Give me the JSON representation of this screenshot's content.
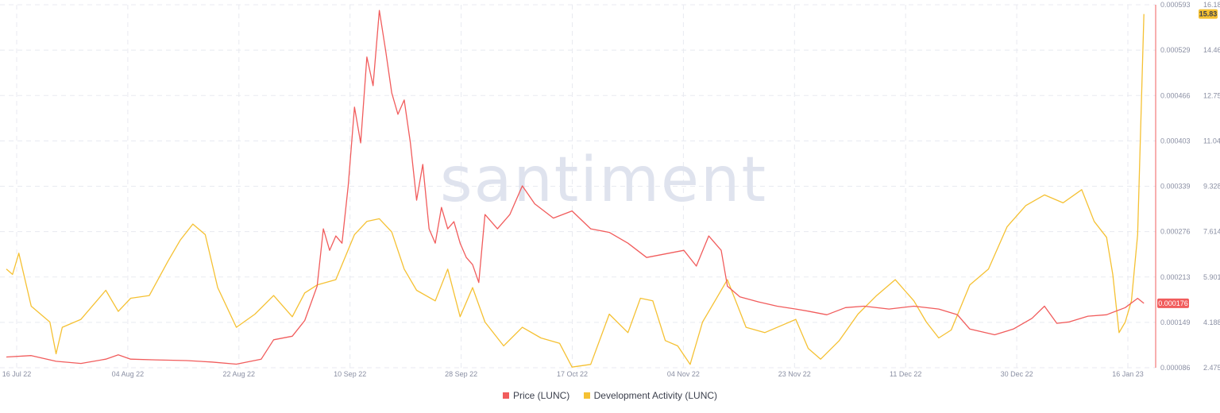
{
  "watermark": "santiment",
  "chart_data": {
    "type": "line",
    "x_tick_labels": [
      "16 Jul 22",
      "04 Aug 22",
      "22 Aug 22",
      "10 Sep 22",
      "28 Sep 22",
      "17 Oct 22",
      "04 Nov 22",
      "23 Nov 22",
      "11 Dec 22",
      "30 Dec 22",
      "16 Jan 23"
    ],
    "x_range": [
      "2022-07-16",
      "2023-01-16"
    ],
    "y_left": {
      "series": "Price (LUNC)",
      "tick_labels": [
        "0.000593",
        "0.000529",
        "0.000466",
        "0.000403",
        "0.000339",
        "0.000276",
        "0.000213",
        "0.000149",
        "0.000086"
      ],
      "range": [
        8.6e-05,
        0.000593
      ],
      "current_label": "0.000176"
    },
    "y_right": {
      "series": "Development Activity (LUNC)",
      "tick_labels": [
        "16.18",
        "14.467",
        "12.754",
        "11.041",
        "9.328",
        "7.614",
        "5.901",
        "4.188",
        "2.475"
      ],
      "range": [
        2.475,
        16.18
      ],
      "current_label": "15.83"
    },
    "grid": true,
    "legend_position": "bottom-center",
    "colors": {
      "price": "#f15c5c",
      "dev": "#f5c133",
      "grid": "#e8eaf0",
      "tick": "#8a8fa3"
    },
    "series": [
      {
        "name": "Price (LUNC)",
        "axis": "left",
        "points": [
          [
            "2022-07-16",
            0.000101
          ],
          [
            "2022-07-20",
            0.000103
          ],
          [
            "2022-07-24",
            9.5e-05
          ],
          [
            "2022-07-28",
            9.2e-05
          ],
          [
            "2022-08-01",
            9.8e-05
          ],
          [
            "2022-08-03",
            0.000104
          ],
          [
            "2022-08-05",
            9.8e-05
          ],
          [
            "2022-08-09",
            9.7e-05
          ],
          [
            "2022-08-14",
            9.6e-05
          ],
          [
            "2022-08-18",
            9.4e-05
          ],
          [
            "2022-08-22",
            9.1e-05
          ],
          [
            "2022-08-26",
            9.8e-05
          ],
          [
            "2022-08-28",
            0.000125
          ],
          [
            "2022-08-31",
            0.00013
          ],
          [
            "2022-09-02",
            0.000152
          ],
          [
            "2022-09-04",
            0.0002
          ],
          [
            "2022-09-05",
            0.00028
          ],
          [
            "2022-09-06",
            0.00025
          ],
          [
            "2022-09-07",
            0.00027
          ],
          [
            "2022-09-08",
            0.00026
          ],
          [
            "2022-09-09",
            0.00034
          ],
          [
            "2022-09-10",
            0.00045
          ],
          [
            "2022-09-11",
            0.0004
          ],
          [
            "2022-09-12",
            0.00052
          ],
          [
            "2022-09-13",
            0.00048
          ],
          [
            "2022-09-14",
            0.000585
          ],
          [
            "2022-09-15",
            0.00053
          ],
          [
            "2022-09-16",
            0.00047
          ],
          [
            "2022-09-17",
            0.00044
          ],
          [
            "2022-09-18",
            0.00046
          ],
          [
            "2022-09-19",
            0.0004
          ],
          [
            "2022-09-20",
            0.00032
          ],
          [
            "2022-09-21",
            0.00037
          ],
          [
            "2022-09-22",
            0.00028
          ],
          [
            "2022-09-23",
            0.00026
          ],
          [
            "2022-09-24",
            0.00031
          ],
          [
            "2022-09-25",
            0.00028
          ],
          [
            "2022-09-26",
            0.00029
          ],
          [
            "2022-09-27",
            0.00026
          ],
          [
            "2022-09-28",
            0.00024
          ],
          [
            "2022-09-29",
            0.00023
          ],
          [
            "2022-09-30",
            0.000205
          ],
          [
            "2022-10-01",
            0.0003
          ],
          [
            "2022-10-03",
            0.00028
          ],
          [
            "2022-10-05",
            0.0003
          ],
          [
            "2022-10-07",
            0.00034
          ],
          [
            "2022-10-09",
            0.000315
          ],
          [
            "2022-10-12",
            0.000295
          ],
          [
            "2022-10-15",
            0.000305
          ],
          [
            "2022-10-18",
            0.00028
          ],
          [
            "2022-10-21",
            0.000275
          ],
          [
            "2022-10-24",
            0.00026
          ],
          [
            "2022-10-27",
            0.00024
          ],
          [
            "2022-10-30",
            0.000245
          ],
          [
            "2022-11-02",
            0.00025
          ],
          [
            "2022-11-04",
            0.000228
          ],
          [
            "2022-11-06",
            0.00027
          ],
          [
            "2022-11-08",
            0.00025
          ],
          [
            "2022-11-09",
            0.0002
          ],
          [
            "2022-11-11",
            0.000185
          ],
          [
            "2022-11-14",
            0.000178
          ],
          [
            "2022-11-17",
            0.000172
          ],
          [
            "2022-11-20",
            0.000168
          ],
          [
            "2022-11-22",
            0.000165
          ],
          [
            "2022-11-25",
            0.00016
          ],
          [
            "2022-11-28",
            0.00017
          ],
          [
            "2022-12-01",
            0.000172
          ],
          [
            "2022-12-05",
            0.000168
          ],
          [
            "2022-12-09",
            0.000172
          ],
          [
            "2022-12-13",
            0.000168
          ],
          [
            "2022-12-16",
            0.00016
          ],
          [
            "2022-12-18",
            0.00014
          ],
          [
            "2022-12-22",
            0.000132
          ],
          [
            "2022-12-25",
            0.00014
          ],
          [
            "2022-12-28",
            0.000155
          ],
          [
            "2022-12-30",
            0.000172
          ],
          [
            "2023-01-01",
            0.000148
          ],
          [
            "2023-01-03",
            0.00015
          ],
          [
            "2023-01-06",
            0.000158
          ],
          [
            "2023-01-09",
            0.00016
          ],
          [
            "2023-01-12",
            0.00017
          ],
          [
            "2023-01-14",
            0.000183
          ],
          [
            "2023-01-15",
            0.000176
          ]
        ]
      },
      {
        "name": "Development Activity (LUNC)",
        "axis": "right",
        "points": [
          [
            "2022-07-16",
            6.2
          ],
          [
            "2022-07-17",
            6.0
          ],
          [
            "2022-07-18",
            6.8
          ],
          [
            "2022-07-19",
            5.8
          ],
          [
            "2022-07-20",
            4.8
          ],
          [
            "2022-07-23",
            4.2
          ],
          [
            "2022-07-24",
            3.0
          ],
          [
            "2022-07-25",
            4.0
          ],
          [
            "2022-07-28",
            4.3
          ],
          [
            "2022-08-01",
            5.4
          ],
          [
            "2022-08-03",
            4.6
          ],
          [
            "2022-08-05",
            5.1
          ],
          [
            "2022-08-08",
            5.2
          ],
          [
            "2022-08-11",
            6.5
          ],
          [
            "2022-08-13",
            7.3
          ],
          [
            "2022-08-15",
            7.9
          ],
          [
            "2022-08-17",
            7.5
          ],
          [
            "2022-08-19",
            5.5
          ],
          [
            "2022-08-22",
            4.0
          ],
          [
            "2022-08-25",
            4.5
          ],
          [
            "2022-08-28",
            5.2
          ],
          [
            "2022-08-31",
            4.4
          ],
          [
            "2022-09-02",
            5.3
          ],
          [
            "2022-09-04",
            5.6
          ],
          [
            "2022-09-07",
            5.8
          ],
          [
            "2022-09-10",
            7.5
          ],
          [
            "2022-09-12",
            8.0
          ],
          [
            "2022-09-14",
            8.1
          ],
          [
            "2022-09-16",
            7.6
          ],
          [
            "2022-09-18",
            6.2
          ],
          [
            "2022-09-20",
            5.4
          ],
          [
            "2022-09-23",
            5.0
          ],
          [
            "2022-09-25",
            6.2
          ],
          [
            "2022-09-27",
            4.4
          ],
          [
            "2022-09-29",
            5.5
          ],
          [
            "2022-10-01",
            4.2
          ],
          [
            "2022-10-04",
            3.3
          ],
          [
            "2022-10-07",
            4.0
          ],
          [
            "2022-10-10",
            3.6
          ],
          [
            "2022-10-13",
            3.4
          ],
          [
            "2022-10-15",
            2.5
          ],
          [
            "2022-10-18",
            2.6
          ],
          [
            "2022-10-21",
            4.5
          ],
          [
            "2022-10-24",
            3.8
          ],
          [
            "2022-10-26",
            5.1
          ],
          [
            "2022-10-28",
            5.0
          ],
          [
            "2022-10-30",
            3.5
          ],
          [
            "2022-11-01",
            3.3
          ],
          [
            "2022-11-03",
            2.6
          ],
          [
            "2022-11-05",
            4.2
          ],
          [
            "2022-11-07",
            5.0
          ],
          [
            "2022-11-09",
            5.8
          ],
          [
            "2022-11-12",
            4.0
          ],
          [
            "2022-11-15",
            3.8
          ],
          [
            "2022-11-18",
            4.1
          ],
          [
            "2022-11-20",
            4.3
          ],
          [
            "2022-11-22",
            3.2
          ],
          [
            "2022-11-24",
            2.8
          ],
          [
            "2022-11-27",
            3.5
          ],
          [
            "2022-11-30",
            4.5
          ],
          [
            "2022-12-03",
            5.2
          ],
          [
            "2022-12-06",
            5.8
          ],
          [
            "2022-12-09",
            5.0
          ],
          [
            "2022-12-11",
            4.2
          ],
          [
            "2022-12-13",
            3.6
          ],
          [
            "2022-12-15",
            3.9
          ],
          [
            "2022-12-18",
            5.6
          ],
          [
            "2022-12-21",
            6.2
          ],
          [
            "2022-12-24",
            7.8
          ],
          [
            "2022-12-27",
            8.6
          ],
          [
            "2022-12-30",
            9.0
          ],
          [
            "2023-01-02",
            8.7
          ],
          [
            "2023-01-05",
            9.2
          ],
          [
            "2023-01-07",
            8.0
          ],
          [
            "2023-01-09",
            7.4
          ],
          [
            "2023-01-10",
            6.0
          ],
          [
            "2023-01-11",
            3.8
          ],
          [
            "2023-01-12",
            4.2
          ],
          [
            "2023-01-13",
            5.0
          ],
          [
            "2023-01-14",
            7.5
          ],
          [
            "2023-01-15",
            15.83
          ]
        ]
      }
    ]
  }
}
